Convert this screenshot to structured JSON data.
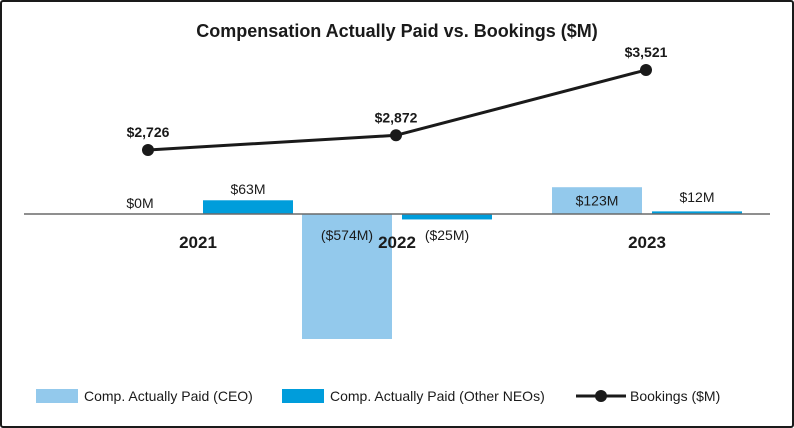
{
  "chart_data": {
    "type": "bar+line",
    "title": "Compensation Actually Paid vs. Bookings ($M)",
    "categories": [
      "2021",
      "2022",
      "2023"
    ],
    "series": [
      {
        "name": "Comp. Actually Paid (CEO)",
        "kind": "bar",
        "color": "#93c9ec",
        "values": [
          0,
          -574,
          123
        ],
        "labels": [
          "$0M",
          "($574M)",
          "$123M"
        ]
      },
      {
        "name": "Comp. Actually Paid (Other NEOs)",
        "kind": "bar",
        "color": "#009ddb",
        "values": [
          63,
          -25,
          12
        ],
        "labels": [
          "$63M",
          "($25M)",
          "$12M"
        ]
      },
      {
        "name": "Bookings ($M)",
        "kind": "line",
        "color": "#1a1a1a",
        "values": [
          2726,
          2872,
          3521
        ],
        "labels": [
          "$2,726",
          "$2,872",
          "$3,521"
        ]
      }
    ],
    "bar_axis_range": [
      -600,
      600
    ],
    "line_axis_range": [
      1900,
      3700
    ],
    "legend_position": "bottom",
    "grid": false
  }
}
